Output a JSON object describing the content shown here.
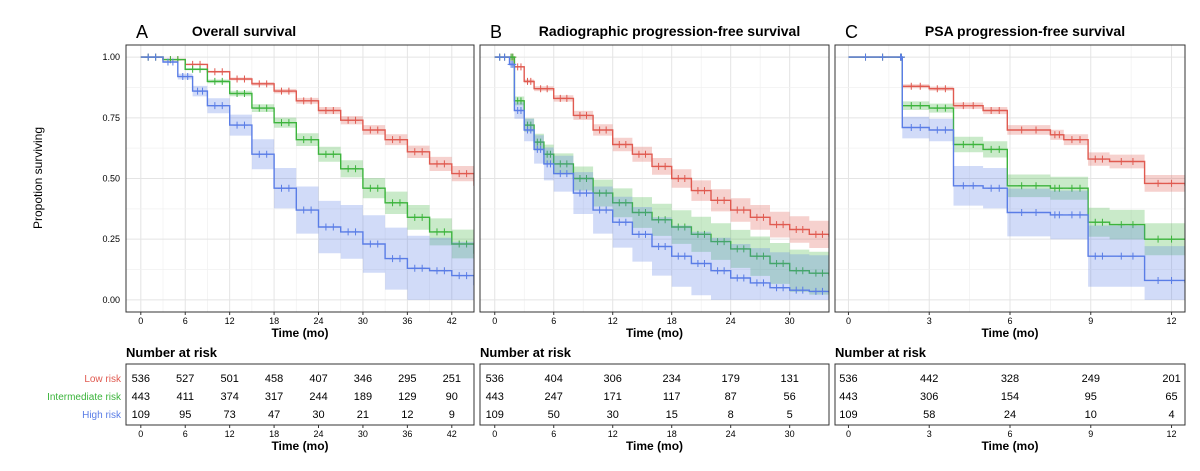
{
  "y_axis_label": "Propotion surviving",
  "y_ticks": [
    "0.00",
    "0.25",
    "0.50",
    "0.75",
    "1.00"
  ],
  "groups": [
    {
      "name": "Low risk",
      "color": "#e05a50"
    },
    {
      "name": "Intermediate risk",
      "color": "#3cb43c"
    },
    {
      "name": "High risk",
      "color": "#5a7de6"
    }
  ],
  "risk_table_title": "Number at risk",
  "chart_data": [
    {
      "type": "line",
      "letter": "A",
      "title": "Overall survival",
      "xlabel": "Time (mo)",
      "ylabel": "Propotion surviving",
      "xlim": [
        -2,
        45
      ],
      "ylim": [
        -0.05,
        1.05
      ],
      "x_ticks": [
        0,
        6,
        12,
        18,
        24,
        30,
        36,
        42
      ],
      "x_tick_labels": [
        "0",
        "6",
        "12",
        "18",
        "24",
        "30",
        "36",
        "42"
      ],
      "series": [
        {
          "name": "Low risk",
          "ci_halfwidth": 0.03,
          "x": [
            0,
            3,
            6,
            9,
            12,
            15,
            18,
            21,
            24,
            27,
            30,
            33,
            36,
            39,
            42,
            45
          ],
          "y": [
            1.0,
            0.99,
            0.97,
            0.94,
            0.91,
            0.89,
            0.86,
            0.82,
            0.78,
            0.74,
            0.7,
            0.66,
            0.61,
            0.56,
            0.52,
            0.47
          ]
        },
        {
          "name": "Intermediate risk",
          "ci_halfwidth": 0.035,
          "x": [
            0,
            3,
            6,
            9,
            12,
            15,
            18,
            21,
            24,
            27,
            30,
            33,
            36,
            39,
            42,
            45
          ],
          "y": [
            1.0,
            0.99,
            0.95,
            0.9,
            0.85,
            0.79,
            0.73,
            0.66,
            0.6,
            0.54,
            0.46,
            0.4,
            0.34,
            0.28,
            0.23,
            0.19
          ]
        },
        {
          "name": "High risk",
          "ci_halfwidth": 0.07,
          "x": [
            0,
            3,
            5,
            7,
            9,
            12,
            15,
            18,
            21,
            24,
            27,
            30,
            33,
            36,
            39,
            42,
            45
          ],
          "y": [
            1.0,
            0.98,
            0.92,
            0.86,
            0.8,
            0.72,
            0.6,
            0.46,
            0.37,
            0.3,
            0.28,
            0.23,
            0.17,
            0.13,
            0.12,
            0.1,
            0.06
          ]
        }
      ],
      "risk_times": [
        "0",
        "6",
        "12",
        "18",
        "24",
        "30",
        "36",
        "42"
      ],
      "risk_table": [
        [
          "536",
          "527",
          "501",
          "458",
          "407",
          "346",
          "295",
          "251"
        ],
        [
          "443",
          "411",
          "374",
          "317",
          "244",
          "189",
          "129",
          "90"
        ],
        [
          "109",
          "95",
          "73",
          "47",
          "30",
          "21",
          "12",
          "9"
        ]
      ]
    },
    {
      "type": "line",
      "letter": "B",
      "title": "Radiographic progression-free survival",
      "xlabel": "Time (mo)",
      "ylabel": "Propotion surviving",
      "xlim": [
        -1.5,
        34
      ],
      "ylim": [
        -0.05,
        1.05
      ],
      "x_ticks": [
        0,
        6,
        12,
        18,
        24,
        30
      ],
      "x_tick_labels": [
        "0",
        "6",
        "12",
        "18",
        "24",
        "30"
      ],
      "series": [
        {
          "name": "Low risk",
          "ci_halfwidth": 0.035,
          "x": [
            0,
            1.5,
            2,
            3,
            4,
            6,
            8,
            10,
            12,
            14,
            16,
            18,
            20,
            22,
            24,
            26,
            28,
            30,
            32,
            34
          ],
          "y": [
            1.0,
            1.0,
            0.96,
            0.9,
            0.87,
            0.83,
            0.76,
            0.7,
            0.64,
            0.6,
            0.55,
            0.5,
            0.45,
            0.41,
            0.37,
            0.34,
            0.31,
            0.29,
            0.27,
            0.26
          ]
        },
        {
          "name": "Intermediate risk",
          "ci_halfwidth": 0.045,
          "x": [
            0,
            1.5,
            2,
            3,
            4,
            5,
            6,
            8,
            10,
            12,
            14,
            16,
            18,
            20,
            22,
            24,
            26,
            28,
            30,
            32,
            34
          ],
          "y": [
            1.0,
            1.0,
            0.82,
            0.72,
            0.65,
            0.6,
            0.56,
            0.5,
            0.44,
            0.4,
            0.36,
            0.33,
            0.3,
            0.27,
            0.24,
            0.21,
            0.18,
            0.15,
            0.12,
            0.11,
            0.1
          ]
        },
        {
          "name": "High risk",
          "ci_halfwidth": 0.07,
          "x": [
            0,
            1.5,
            2,
            3,
            4,
            5,
            6,
            8,
            10,
            12,
            14,
            16,
            18,
            20,
            22,
            24,
            26,
            28,
            30,
            32,
            34
          ],
          "y": [
            1.0,
            0.97,
            0.78,
            0.7,
            0.62,
            0.56,
            0.52,
            0.44,
            0.37,
            0.32,
            0.27,
            0.22,
            0.18,
            0.15,
            0.12,
            0.09,
            0.07,
            0.05,
            0.04,
            0.035,
            0.03
          ]
        }
      ],
      "risk_times": [
        "0",
        "6",
        "12",
        "18",
        "24",
        "30"
      ],
      "risk_table": [
        [
          "536",
          "404",
          "306",
          "234",
          "179",
          "131"
        ],
        [
          "443",
          "247",
          "171",
          "117",
          "87",
          "56"
        ],
        [
          "109",
          "50",
          "30",
          "15",
          "8",
          "5"
        ]
      ]
    },
    {
      "type": "line",
      "letter": "C",
      "title": "PSA progression-free survival",
      "xlabel": "Time (mo)",
      "ylabel": "Propotion surviving",
      "xlim": [
        -0.5,
        12.5
      ],
      "ylim": [
        -0.05,
        1.05
      ],
      "x_ticks": [
        0,
        3,
        6,
        9,
        12
      ],
      "x_tick_labels": [
        "0",
        "3",
        "6",
        "9",
        "12"
      ],
      "series": [
        {
          "name": "Low risk",
          "ci_halfwidth": 0.03,
          "x": [
            0,
            1.9,
            2.0,
            3.0,
            3.9,
            5.0,
            5.9,
            7.5,
            8.0,
            8.9,
            9.7,
            11.0,
            12.5
          ],
          "y": [
            1.0,
            1.0,
            0.88,
            0.87,
            0.8,
            0.78,
            0.7,
            0.68,
            0.66,
            0.58,
            0.57,
            0.48,
            0.47
          ]
        },
        {
          "name": "Intermediate risk",
          "ci_halfwidth": 0.04,
          "x": [
            0,
            1.9,
            2.0,
            3.0,
            3.9,
            5.0,
            5.9,
            7.5,
            8.0,
            8.9,
            9.7,
            11.0,
            12.5
          ],
          "y": [
            1.0,
            1.0,
            0.8,
            0.79,
            0.64,
            0.62,
            0.47,
            0.46,
            0.46,
            0.32,
            0.31,
            0.25,
            0.25
          ]
        },
        {
          "name": "High risk",
          "ci_halfwidth": 0.07,
          "x": [
            0,
            1.9,
            2.0,
            3.0,
            3.9,
            5.0,
            5.9,
            7.5,
            8.0,
            8.9,
            9.7,
            11.0,
            12.5
          ],
          "y": [
            1.0,
            1.0,
            0.71,
            0.7,
            0.47,
            0.46,
            0.36,
            0.35,
            0.35,
            0.18,
            0.18,
            0.08,
            0.07
          ]
        }
      ],
      "risk_times": [
        "0",
        "3",
        "6",
        "9",
        "12"
      ],
      "risk_table": [
        [
          "536",
          "442",
          "328",
          "249",
          "201"
        ],
        [
          "443",
          "306",
          "154",
          "95",
          "65"
        ],
        [
          "109",
          "58",
          "24",
          "10",
          "4"
        ]
      ]
    }
  ]
}
